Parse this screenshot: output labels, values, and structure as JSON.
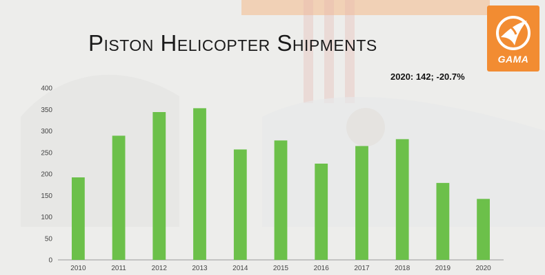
{
  "slide": {
    "title": "Piston Helicopter Shipments",
    "annotation": "2020: 142; -20.7%",
    "logo": {
      "text": "GAMA",
      "color": "#f28c32",
      "icon": "gama-bird-logo-icon"
    }
  },
  "chart_data": {
    "type": "bar",
    "categories": [
      "2010",
      "2011",
      "2012",
      "2013",
      "2014",
      "2015",
      "2016",
      "2017",
      "2018",
      "2019",
      "2020"
    ],
    "values": [
      192,
      289,
      344,
      353,
      257,
      278,
      224,
      265,
      281,
      179,
      142
    ],
    "ylim": [
      0,
      400
    ],
    "yticks": [
      0,
      50,
      100,
      150,
      200,
      250,
      300,
      350,
      400
    ],
    "grid": false,
    "legend": "none",
    "bar_color": "#6cc04a"
  }
}
